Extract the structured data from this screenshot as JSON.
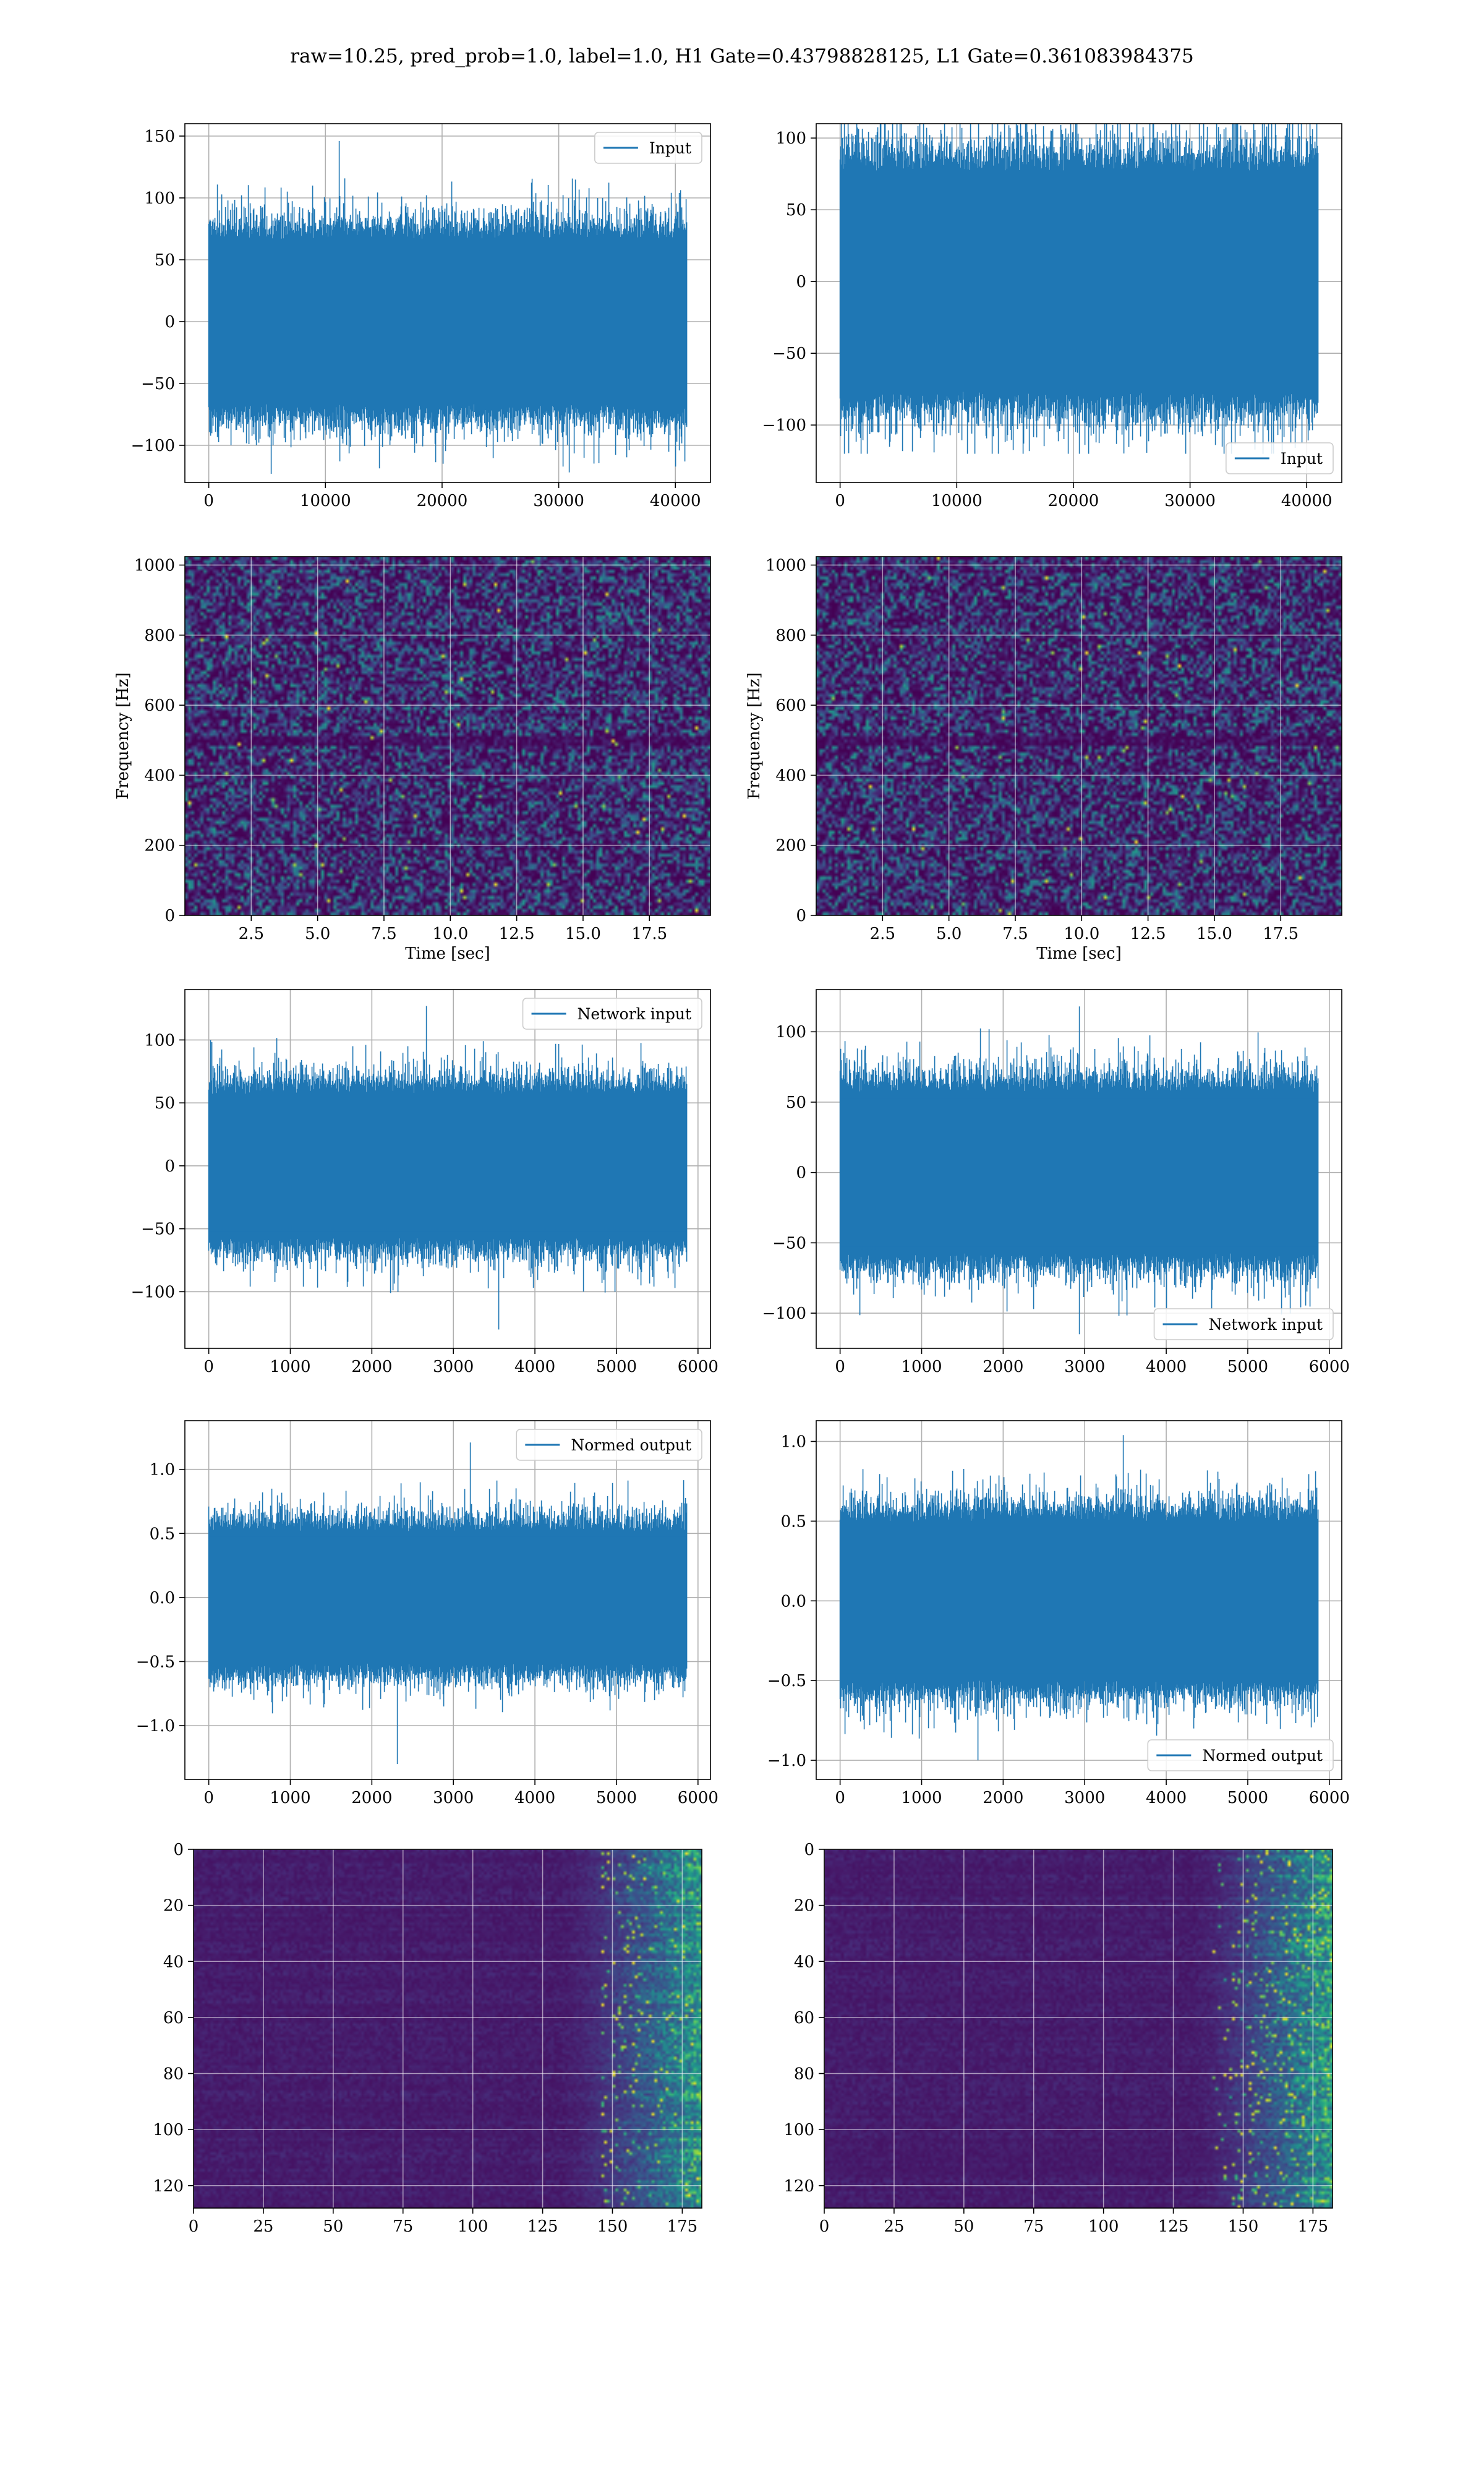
{
  "figure": {
    "suptitle": "raw=10.25, pred_prob=1.0, label=1.0, H1 Gate=0.43798828125, L1 Gate=0.361083984375"
  },
  "colors": {
    "line": "#1f77b4",
    "grid": "#b0b0b0"
  },
  "chart_data": [
    {
      "id": "h1-input",
      "type": "line",
      "series": [
        {
          "name": "Input",
          "n": 40960,
          "amplitude": 35,
          "min": -123,
          "max": 146
        }
      ],
      "xlim": [
        -2048,
        43008
      ],
      "ylim": [
        -130,
        160
      ],
      "xticks": [
        "0",
        "10000",
        "20000",
        "30000",
        "40000"
      ],
      "xtick_values": [
        0,
        10000,
        20000,
        30000,
        40000
      ],
      "yticks": [
        "−100",
        "−50",
        "0",
        "50",
        "100",
        "150"
      ],
      "ytick_values": [
        -100,
        -50,
        0,
        50,
        100,
        150
      ],
      "legend": "upper right",
      "grid": true
    },
    {
      "id": "l1-input",
      "type": "line",
      "series": [
        {
          "name": "Input",
          "n": 40960,
          "amplitude": 40,
          "min": -120,
          "max": 122
        }
      ],
      "xlim": [
        -2048,
        43008
      ],
      "ylim": [
        -140,
        110
      ],
      "xticks": [
        "0",
        "10000",
        "20000",
        "30000",
        "40000"
      ],
      "xtick_values": [
        0,
        10000,
        20000,
        30000,
        40000
      ],
      "yticks": [
        "−100",
        "−50",
        "0",
        "50",
        "100"
      ],
      "ytick_values": [
        -100,
        -50,
        0,
        50,
        100
      ],
      "legend": "lower right",
      "grid": true
    },
    {
      "id": "h1-spectrogram",
      "type": "heatmap",
      "xlabel": "Time [sec]",
      "ylabel": "Frequency [Hz]",
      "xlim": [
        0,
        19.8
      ],
      "ylim": [
        0,
        1024
      ],
      "xticks": [
        "2.5",
        "5.0",
        "7.5",
        "10.0",
        "12.5",
        "15.0",
        "17.5"
      ],
      "xtick_values": [
        2.5,
        5.0,
        7.5,
        10.0,
        12.5,
        15.0,
        17.5
      ],
      "yticks": [
        "0",
        "200",
        "400",
        "600",
        "800",
        "1000"
      ],
      "ytick_values": [
        0,
        200,
        400,
        600,
        800,
        1000
      ],
      "colormap": "viridis",
      "grid": true
    },
    {
      "id": "l1-spectrogram",
      "type": "heatmap",
      "xlabel": "Time [sec]",
      "ylabel": "Frequency [Hz]",
      "xlim": [
        0,
        19.8
      ],
      "ylim": [
        0,
        1024
      ],
      "xticks": [
        "2.5",
        "5.0",
        "7.5",
        "10.0",
        "12.5",
        "15.0",
        "17.5"
      ],
      "xtick_values": [
        2.5,
        5.0,
        7.5,
        10.0,
        12.5,
        15.0,
        17.5
      ],
      "yticks": [
        "0",
        "200",
        "400",
        "600",
        "800",
        "1000"
      ],
      "ytick_values": [
        0,
        200,
        400,
        600,
        800,
        1000
      ],
      "colormap": "viridis",
      "grid": true
    },
    {
      "id": "h1-network-input",
      "type": "line",
      "series": [
        {
          "name": "Network input",
          "n": 5860,
          "amplitude": 30,
          "min": -130,
          "max": 127
        }
      ],
      "xlim": [
        -293,
        6153
      ],
      "ylim": [
        -145,
        140
      ],
      "xticks": [
        "0",
        "1000",
        "2000",
        "3000",
        "4000",
        "5000",
        "6000"
      ],
      "xtick_values": [
        0,
        1000,
        2000,
        3000,
        4000,
        5000,
        6000
      ],
      "yticks": [
        "−100",
        "−50",
        "0",
        "50",
        "100"
      ],
      "ytick_values": [
        -100,
        -50,
        0,
        50,
        100
      ],
      "legend": "upper right",
      "grid": true
    },
    {
      "id": "l1-network-input",
      "type": "line",
      "series": [
        {
          "name": "Network input",
          "n": 5860,
          "amplitude": 30,
          "min": -115,
          "max": 118
        }
      ],
      "xlim": [
        -293,
        6153
      ],
      "ylim": [
        -125,
        130
      ],
      "xticks": [
        "0",
        "1000",
        "2000",
        "3000",
        "4000",
        "5000",
        "6000"
      ],
      "xtick_values": [
        0,
        1000,
        2000,
        3000,
        4000,
        5000,
        6000
      ],
      "yticks": [
        "−100",
        "−50",
        "0",
        "50",
        "100"
      ],
      "ytick_values": [
        -100,
        -50,
        0,
        50,
        100
      ],
      "legend": "lower right",
      "grid": true
    },
    {
      "id": "h1-normed-output",
      "type": "line",
      "series": [
        {
          "name": "Normed output",
          "n": 5860,
          "amplitude": 0.27,
          "min": -1.3,
          "max": 1.21
        }
      ],
      "xlim": [
        -293,
        6153
      ],
      "ylim": [
        -1.42,
        1.38
      ],
      "xticks": [
        "0",
        "1000",
        "2000",
        "3000",
        "4000",
        "5000",
        "6000"
      ],
      "xtick_values": [
        0,
        1000,
        2000,
        3000,
        4000,
        5000,
        6000
      ],
      "yticks": [
        "−1.0",
        "−0.5",
        "0.0",
        "0.5",
        "1.0"
      ],
      "ytick_values": [
        -1.0,
        -0.5,
        0.0,
        0.5,
        1.0
      ],
      "legend": "upper right",
      "grid": true
    },
    {
      "id": "l1-normed-output",
      "type": "line",
      "series": [
        {
          "name": "Normed output",
          "n": 5860,
          "amplitude": 0.26,
          "min": -1.0,
          "max": 1.04
        }
      ],
      "xlim": [
        -293,
        6153
      ],
      "ylim": [
        -1.12,
        1.13
      ],
      "xticks": [
        "0",
        "1000",
        "2000",
        "3000",
        "4000",
        "5000",
        "6000"
      ],
      "xtick_values": [
        0,
        1000,
        2000,
        3000,
        4000,
        5000,
        6000
      ],
      "yticks": [
        "−1.0",
        "−0.5",
        "0.0",
        "0.5",
        "1.0"
      ],
      "ytick_values": [
        -1.0,
        -0.5,
        0.0,
        0.5,
        1.0
      ],
      "legend": "lower right",
      "grid": true
    },
    {
      "id": "h1-feature-map",
      "type": "heatmap",
      "rows": 128,
      "cols": 182,
      "xlim": [
        0,
        182
      ],
      "ylim": [
        128,
        0
      ],
      "xticks": [
        "0",
        "25",
        "50",
        "75",
        "100",
        "125",
        "150",
        "175"
      ],
      "xtick_values": [
        0,
        25,
        50,
        75,
        100,
        125,
        150,
        175
      ],
      "yticks": [
        "0",
        "20",
        "40",
        "60",
        "80",
        "100",
        "120"
      ],
      "ytick_values": [
        0,
        20,
        40,
        60,
        80,
        100,
        120
      ],
      "colormap": "viridis",
      "grid": true
    },
    {
      "id": "l1-feature-map",
      "type": "heatmap",
      "rows": 128,
      "cols": 182,
      "xlim": [
        0,
        182
      ],
      "ylim": [
        128,
        0
      ],
      "xticks": [
        "0",
        "25",
        "50",
        "75",
        "100",
        "125",
        "150",
        "175"
      ],
      "xtick_values": [
        0,
        25,
        50,
        75,
        100,
        125,
        150,
        175
      ],
      "yticks": [
        "0",
        "20",
        "40",
        "60",
        "80",
        "100",
        "120"
      ],
      "ytick_values": [
        0,
        20,
        40,
        60,
        80,
        100,
        120
      ],
      "colormap": "viridis",
      "grid": true
    }
  ]
}
